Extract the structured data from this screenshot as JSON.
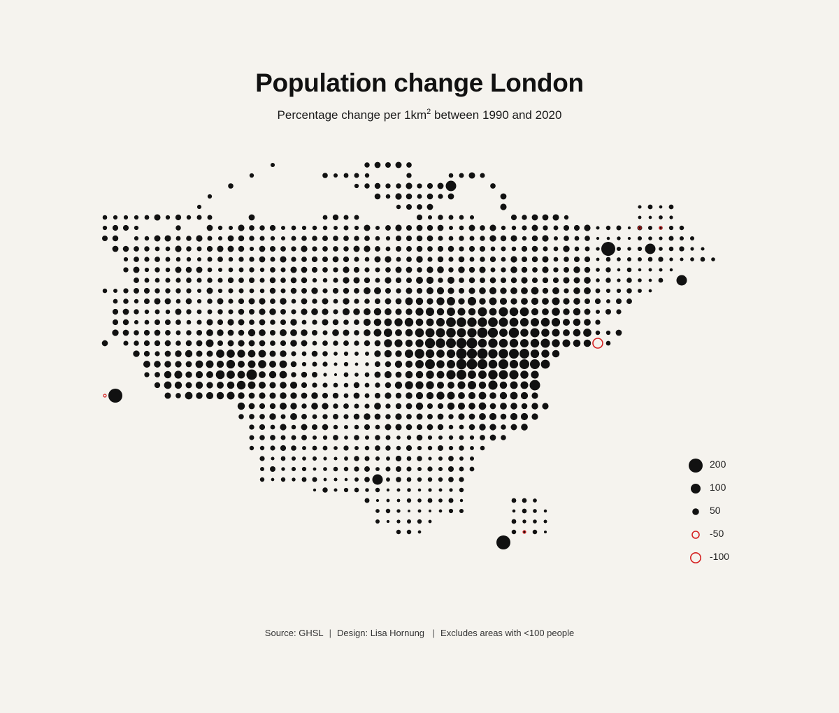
{
  "header": {
    "title": "Population change London",
    "subtitle_prefix": "Percentage change per 1km",
    "subtitle_sup": "2",
    "subtitle_suffix": " between 1990 and 2020"
  },
  "legend": {
    "items": [
      {
        "label": "200",
        "value": 200
      },
      {
        "label": "100",
        "value": 100
      },
      {
        "label": "50",
        "value": 50
      },
      {
        "label": "-50",
        "value": -50
      },
      {
        "label": "-100",
        "value": -100
      }
    ]
  },
  "footer": {
    "source": "Source: GHSL",
    "design": "Design: Lisa Hornung",
    "note": "Excludes areas with <100 people"
  },
  "colors": {
    "positive": "#111111",
    "negative": "#d42020",
    "background": "#f5f3ee"
  },
  "map_data": {
    "type": "grid-dot-map",
    "encoding": "dot size = percentage change; filled black = increase, red ring = decrease",
    "grid": {
      "origin_col": 0,
      "cols": 61,
      "rows": 36,
      "rows_spec": [
        [
          16,
          25,
          29
        ],
        [
          14,
          21,
          25,
          29,
          33,
          36
        ],
        [
          12,
          24,
          33,
          37
        ],
        [
          10,
          26,
          33,
          38
        ],
        [
          9,
          28,
          31,
          38,
          -51,
          -53,
          54
        ],
        [
          0,
          0,
          3,
          5,
          6,
          10,
          14,
          21,
          24,
          30,
          35,
          39,
          44,
          51,
          54
        ],
        [
          0,
          0,
          3,
          5,
          7,
          44,
          47,
          52,
          55
        ],
        [
          0,
          0,
          1,
          3,
          44,
          47,
          56
        ],
        [
          1,
          51,
          57
        ],
        [
          2,
          49,
          58
        ],
        [
          2,
          47,
          54
        ],
        [
          3,
          53
        ],
        [
          0,
          0,
          1,
          50,
          52
        ],
        [
          1,
          44,
          47,
          50
        ],
        [
          1,
          46,
          49
        ],
        [
          1,
          44,
          45,
          46,
          47
        ],
        [
          1,
          44,
          49
        ],
        [
          -1,
          0,
          2,
          4,
          44,
          48
        ],
        [
          3,
          43
        ],
        [
          4,
          42
        ],
        [
          4,
          39,
          41
        ],
        [
          5,
          40
        ],
        [
          6,
          41
        ],
        [
          13,
          42
        ],
        [
          13,
          41
        ],
        [
          14,
          40
        ],
        [
          14,
          38
        ],
        [
          14,
          36
        ],
        [
          14,
          35
        ],
        [
          15,
          35
        ],
        [
          15,
          34
        ],
        [
          20,
          34
        ],
        [
          25,
          39,
          41
        ],
        [
          26,
          39,
          42
        ],
        [
          26,
          31,
          39,
          42
        ],
        [
          28,
          30,
          39,
          42
        ]
      ]
    }
  }
}
